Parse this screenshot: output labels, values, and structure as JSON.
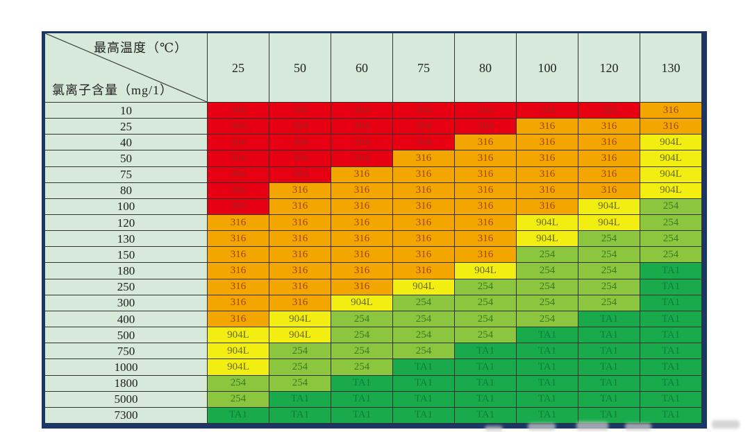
{
  "table": {
    "corner": {
      "top_label": "最高温度（℃）",
      "bottom_label": "氯离子含量（mg/1）"
    },
    "temperatures": [
      "25",
      "50",
      "60",
      "75",
      "80",
      "100",
      "120",
      "130"
    ],
    "chloride_levels": [
      "10",
      "25",
      "40",
      "50",
      "75",
      "80",
      "100",
      "120",
      "130",
      "150",
      "180",
      "250",
      "300",
      "400",
      "500",
      "750",
      "1000",
      "1800",
      "5000",
      "7300"
    ]
  },
  "chart_data": {
    "type": "heatmap",
    "title": "",
    "xlabel": "最高温度（℃）",
    "ylabel": "氯离子含量（mg/1）",
    "x": [
      25,
      50,
      60,
      75,
      80,
      100,
      120,
      130
    ],
    "y": [
      10,
      25,
      40,
      50,
      75,
      80,
      100,
      120,
      130,
      150,
      180,
      250,
      300,
      400,
      500,
      750,
      1000,
      1800,
      5000,
      7300
    ],
    "categories": [
      "304",
      "316",
      "904L",
      "254",
      "TA1"
    ],
    "values": [
      [
        "304",
        "304",
        "304",
        "304",
        "304",
        "304",
        "304",
        "316"
      ],
      [
        "304",
        "304",
        "304",
        "304",
        "304",
        "316",
        "316",
        "316"
      ],
      [
        "304",
        "304",
        "304",
        "304",
        "316",
        "316",
        "316",
        "904L"
      ],
      [
        "304",
        "304",
        "304",
        "316",
        "316",
        "316",
        "316",
        "904L"
      ],
      [
        "304",
        "304",
        "316",
        "316",
        "316",
        "316",
        "316",
        "904L"
      ],
      [
        "304",
        "316",
        "316",
        "316",
        "316",
        "316",
        "316",
        "904L"
      ],
      [
        "304",
        "316",
        "316",
        "316",
        "316",
        "316",
        "904L",
        "254"
      ],
      [
        "316",
        "316",
        "316",
        "316",
        "316",
        "904L",
        "904L",
        "254"
      ],
      [
        "316",
        "316",
        "316",
        "316",
        "316",
        "904L",
        "254",
        "254"
      ],
      [
        "316",
        "316",
        "316",
        "316",
        "316",
        "254",
        "254",
        "254"
      ],
      [
        "316",
        "316",
        "316",
        "316",
        "904L",
        "254",
        "254",
        "TA1"
      ],
      [
        "316",
        "316",
        "316",
        "904L",
        "254",
        "254",
        "254",
        "TA1"
      ],
      [
        "316",
        "316",
        "904L",
        "254",
        "254",
        "254",
        "254",
        "TA1"
      ],
      [
        "316",
        "904L",
        "254",
        "254",
        "254",
        "254",
        "TA1",
        "TA1"
      ],
      [
        "904L",
        "904L",
        "254",
        "254",
        "254",
        "TA1",
        "TA1",
        "TA1"
      ],
      [
        "904L",
        "254",
        "254",
        "254",
        "TA1",
        "TA1",
        "TA1",
        "TA1"
      ],
      [
        "904L",
        "254",
        "254",
        "TA1",
        "TA1",
        "TA1",
        "TA1",
        "TA1"
      ],
      [
        "254",
        "254",
        "TA1",
        "TA1",
        "TA1",
        "TA1",
        "TA1",
        "TA1"
      ],
      [
        "254",
        "TA1",
        "TA1",
        "TA1",
        "TA1",
        "TA1",
        "TA1",
        "TA1"
      ],
      [
        "TA1",
        "TA1",
        "TA1",
        "TA1",
        "TA1",
        "TA1",
        "TA1",
        "TA1"
      ]
    ],
    "legend_position": "none",
    "grid": true
  },
  "colors": {
    "fill": {
      "304": "#e60012",
      "316": "#f3a500",
      "904L": "#f2ee12",
      "254": "#8cc63f",
      "TA1": "#19ab4b"
    },
    "text": {
      "304": "#a02020",
      "316": "#9c4404",
      "904L": "#6a6a15",
      "254": "#3b7b20",
      "TA1": "#0d7d39"
    },
    "header_bg": "#d7e9d9",
    "outer_border": "#1c3765",
    "grid_line": "#303030"
  }
}
